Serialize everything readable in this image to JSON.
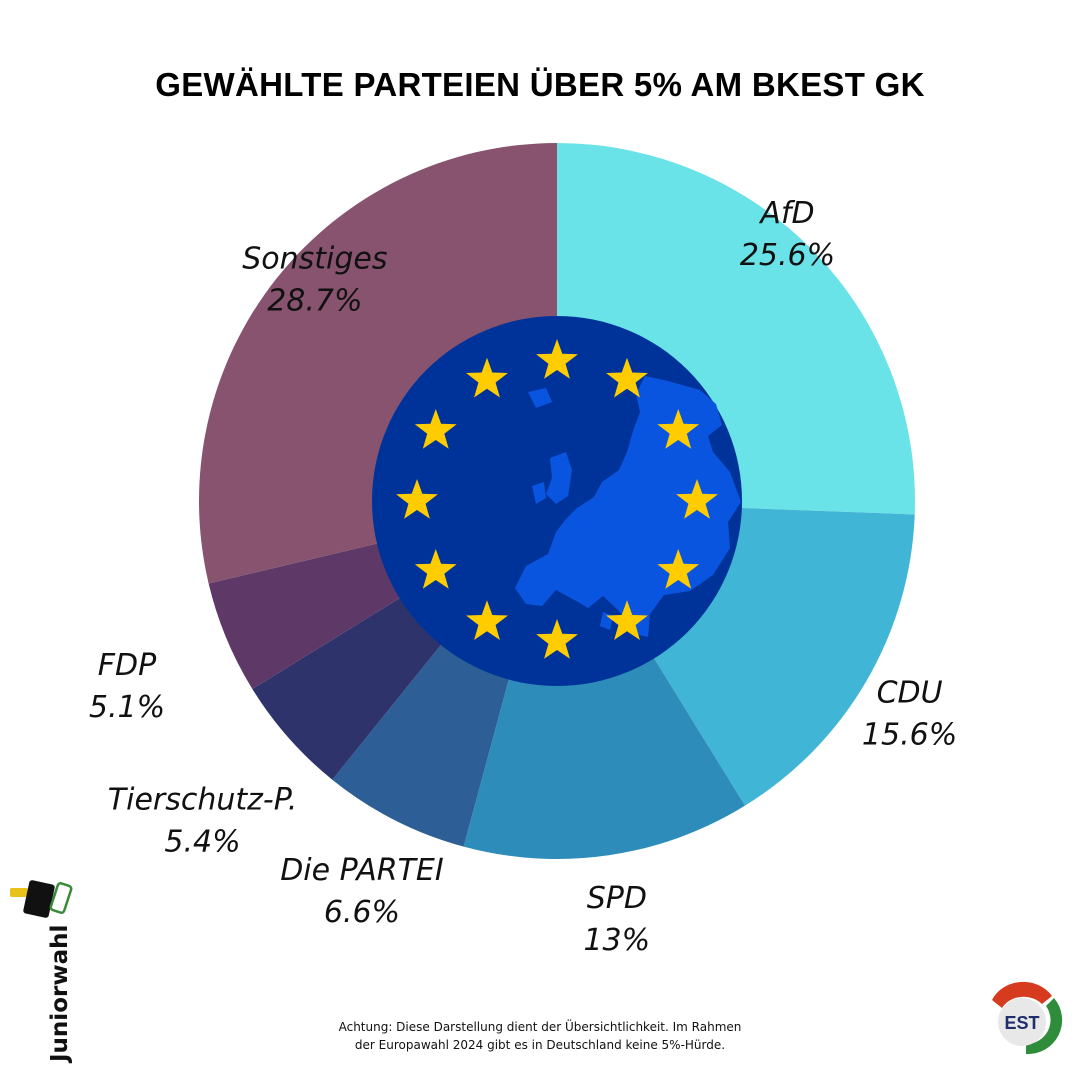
{
  "title": "GEWÄHLTE PARTEIEN ÜBER 5% AM BKEST GK",
  "note_line1": "Achtung: Diese Darstellung dient der Übersichtlichkeit. Im Rahmen",
  "note_line2": "der Europawahl 2024 gibt es in Deutschland keine 5%-Hürde.",
  "logo_left_text": "Juniorwahl",
  "logo_right_text": "EST",
  "colors": {
    "eu_blue_dark": "#003399",
    "eu_blue_land": "#0a55e0",
    "eu_star": "#ffcc00"
  },
  "chart_data": {
    "type": "pie",
    "categories": [
      "AfD",
      "CDU",
      "SPD",
      "Die PARTEI",
      "Tierschutz-P.",
      "FDP",
      "Sonstiges"
    ],
    "values": [
      25.6,
      15.6,
      13,
      6.6,
      5.4,
      5.1,
      28.7
    ],
    "value_labels": [
      "25.6%",
      "15.6%",
      "13%",
      "6.6%",
      "5.4%",
      "5.1%",
      "28.7%"
    ],
    "colors": [
      "#6ae3e8",
      "#41b5d6",
      "#2e8cbb",
      "#2e5e96",
      "#2f336b",
      "#5e3866",
      "#87536f"
    ],
    "start": "top",
    "direction": "clockwise"
  }
}
